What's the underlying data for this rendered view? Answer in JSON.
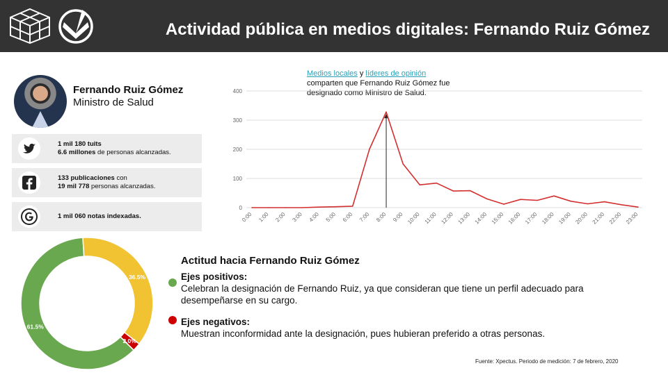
{
  "header": {
    "title": "Actividad pública en medios digitales: Fernando Ruiz Gómez",
    "background": "#333333"
  },
  "profile": {
    "name": "Fernando Ruiz Gómez",
    "role": "Ministro de Salud"
  },
  "stats": [
    {
      "icon": "twitter-icon",
      "line1_bold": "1 mil 180 tuits",
      "line1_rest": "",
      "line2_bold": "6.6 millones",
      "line2_rest": " de personas alcanzadas."
    },
    {
      "icon": "facebook-icon",
      "line1_bold": "133 publicaciones",
      "line1_rest": " con",
      "line2_bold": "19 mil 778",
      "line2_rest": " personas alcanzadas."
    },
    {
      "icon": "google-icon",
      "line1_bold": "1 mil 060 notas indexadas.",
      "line1_rest": "",
      "line2_bold": "",
      "line2_rest": ""
    }
  ],
  "annotation": {
    "link1": "Medios locales",
    "connector": "y",
    "link2": "líderes de opinión",
    "line2": "comparten que Fernando Ruiz Gómez fue",
    "line3": "designado como Ministro de Salud."
  },
  "chart_data": [
    {
      "type": "line",
      "x": [
        "0:00",
        "1:00",
        "2:00",
        "3:00",
        "4:00",
        "5:00",
        "6:00",
        "7:00",
        "8:00",
        "9:00",
        "10:00",
        "11:00",
        "12:00",
        "13:00",
        "14:00",
        "15:00",
        "16:00",
        "17:00",
        "18:00",
        "19:00",
        "20:00",
        "21:00",
        "22:00",
        "23:00"
      ],
      "series": [
        {
          "values": [
            0,
            0,
            0,
            0,
            2,
            3,
            5,
            200,
            328,
            150,
            78,
            84,
            57,
            58,
            30,
            12,
            28,
            25,
            40,
            22,
            13,
            20,
            10,
            2
          ],
          "color": "#d32f2f"
        }
      ],
      "yticks": [
        0,
        100,
        200,
        300,
        400
      ],
      "ylim": [
        0,
        400
      ],
      "grid": true,
      "marker_at": "8:00"
    },
    {
      "type": "pie",
      "donut": true,
      "labels": [
        "61.5%",
        "36.5%",
        "2.0%"
      ],
      "values": [
        61.5,
        36.5,
        2.0
      ],
      "colors": [
        "#6aa84f",
        "#f1c232",
        "#cc0000"
      ]
    }
  ],
  "attitude": {
    "title": "Actitud hacia Fernando Ruiz Gómez",
    "positive_title": "Ejes positivos:",
    "positive_text": "Celebran la designación de Fernando Ruiz, ya que consideran que tiene un perfil adecuado para desempeñarse en su cargo.",
    "positive_color": "#6aa84f",
    "negative_title": "Ejes negativos:",
    "negative_text": "Muestran inconformidad ante la designación, pues hubieran preferido a otras personas.",
    "negative_color": "#cc0000"
  },
  "source": "Fuente: Xpectus. Periodo de medición:  7 de febrero, 2020"
}
